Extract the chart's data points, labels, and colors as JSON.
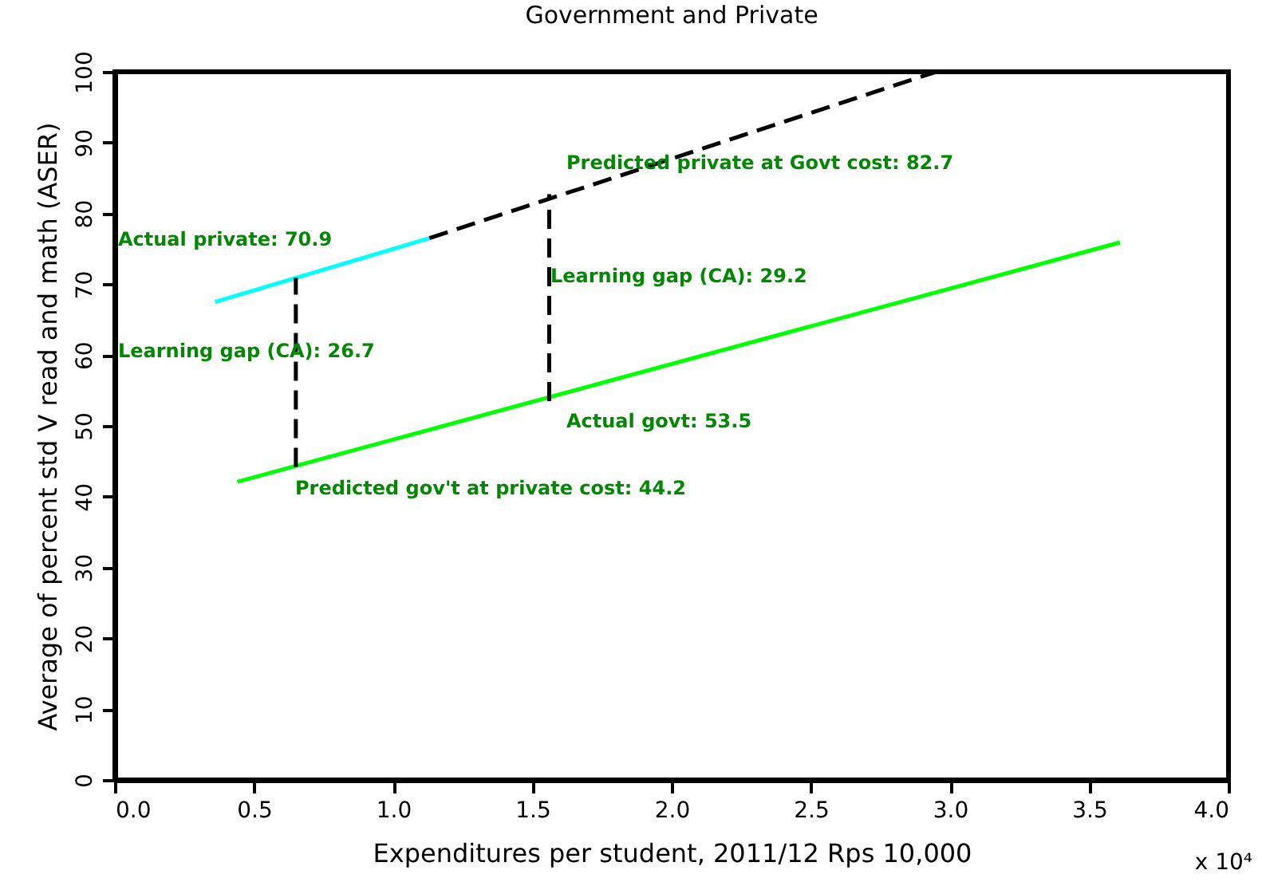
{
  "chart_data": {
    "type": "line",
    "title": "Government and Private",
    "xlabel": "Expenditures per student, 2011/12 Rps 10,000",
    "ylabel": "Average of percent std V read and math (ASER)",
    "xlim": [
      0,
      4
    ],
    "xticks": [
      {
        "value": 0,
        "label": "0.0"
      },
      {
        "value": 0.5,
        "label": "0.5"
      },
      {
        "value": 1,
        "label": "1.0"
      },
      {
        "value": 1.5,
        "label": "1.5"
      },
      {
        "value": 2,
        "label": "2.0"
      },
      {
        "value": 2.5,
        "label": "2.5"
      },
      {
        "value": 3,
        "label": "3.0"
      },
      {
        "value": 3.5,
        "label": "3.5"
      },
      {
        "value": 4,
        "label": "4.0"
      }
    ],
    "ylim": [
      0,
      100
    ],
    "yticks": [
      0,
      10,
      20,
      30,
      40,
      50,
      60,
      70,
      80,
      90,
      100
    ],
    "grid": false,
    "marker": "none",
    "series": [
      {
        "color": "#00ffff",
        "line_style": "solid",
        "x": [
          0.36,
          1.13
        ],
        "values": [
          67.5,
          76.5
        ]
      },
      {
        "color": "#000000",
        "line_style": "dashed",
        "x": [
          1.13,
          2.95
        ],
        "values": [
          76.5,
          100
        ]
      },
      {
        "color": "#00ff00",
        "line_style": "solid",
        "x": [
          0.44,
          3.61
        ],
        "values": [
          42.1,
          75.9
        ]
      },
      {
        "color": "#000000",
        "line_style": "dashed",
        "x": [
          0.65,
          0.65
        ],
        "values": [
          44.2,
          70.9
        ]
      },
      {
        "color": "#000000",
        "line_style": "dashed",
        "x": [
          1.56,
          1.56
        ],
        "values": [
          53.5,
          82.7
        ]
      }
    ],
    "annotations": [
      "Actual private: 70.9",
      "Learning gap (CA): 26.7",
      "Predicted gov't at private cost: 44.2",
      "Predicted private at Govt cost: 82.7",
      "Learning gap (CA): 29.2",
      "Actual govt: 53.5",
      "x 10⁴"
    ]
  }
}
